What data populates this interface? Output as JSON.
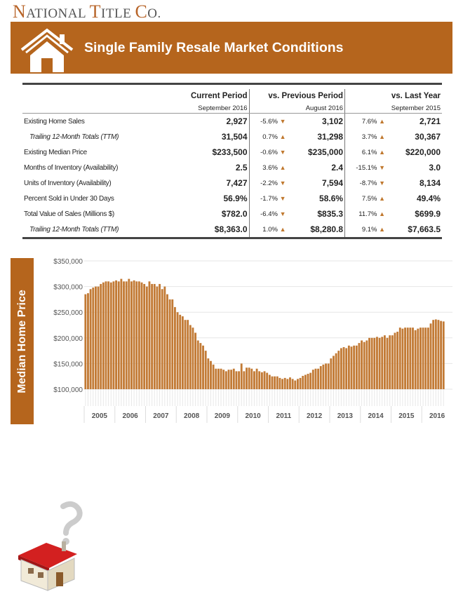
{
  "header": {
    "logo": {
      "n": "N",
      "ational": "ATIONAL",
      "t": "T",
      "itle": "ITLE",
      "c": "C",
      "o": "O."
    },
    "title": "Single Family Resale Market Conditions"
  },
  "table": {
    "col_headers": [
      "Current Period",
      "vs. Previous Period",
      "vs. Last Year"
    ],
    "col_periods": [
      "September 2016",
      "August 2016",
      "September 2015"
    ],
    "rows": [
      {
        "label": "Existing Home Sales",
        "italic": false,
        "current": "2,927",
        "prev_pct": "-5.6%",
        "prev_dir": "down",
        "prev": "3,102",
        "ly_pct": "7.6%",
        "ly_dir": "up",
        "ly": "2,721"
      },
      {
        "label": "Trailing 12-Month Totals (TTM)",
        "italic": true,
        "current": "31,504",
        "prev_pct": "0.7%",
        "prev_dir": "up",
        "prev": "31,298",
        "ly_pct": "3.7%",
        "ly_dir": "up",
        "ly": "30,367"
      },
      {
        "label": "Existing Median Price",
        "italic": false,
        "current": "$233,500",
        "prev_pct": "-0.6%",
        "prev_dir": "down",
        "prev": "$235,000",
        "ly_pct": "6.1%",
        "ly_dir": "up",
        "ly": "$220,000"
      },
      {
        "label": "Months of Inventory (Availability)",
        "italic": false,
        "current": "2.5",
        "prev_pct": "3.6%",
        "prev_dir": "up",
        "prev": "2.4",
        "ly_pct": "-15.1%",
        "ly_dir": "down",
        "ly": "3.0"
      },
      {
        "label": "Units of Inventory (Availability)",
        "italic": false,
        "current": "7,427",
        "prev_pct": "-2.2%",
        "prev_dir": "down",
        "prev": "7,594",
        "ly_pct": "-8.7%",
        "ly_dir": "down",
        "ly": "8,134"
      },
      {
        "label": "Percent Sold in Under 30 Days",
        "italic": false,
        "current": "56.9%",
        "prev_pct": "-1.7%",
        "prev_dir": "down",
        "prev": "58.6%",
        "ly_pct": "7.5%",
        "ly_dir": "up",
        "ly": "49.4%"
      },
      {
        "label": "Total Value of Sales (Millions $)",
        "italic": false,
        "current": "$782.0",
        "prev_pct": "-6.4%",
        "prev_dir": "down",
        "prev": "$835.3",
        "ly_pct": "11.7%",
        "ly_dir": "up",
        "ly": "$699.9"
      },
      {
        "label": "Trailing 12-Month Totals (TTM)",
        "italic": true,
        "current": "$8,363.0",
        "prev_pct": "1.0%",
        "prev_dir": "up",
        "prev": "$8,280.8",
        "ly_pct": "9.1%",
        "ly_dir": "up",
        "ly": "$7,663.5"
      }
    ]
  },
  "colors": {
    "brand": "#b5651d",
    "bar": "#c27a35",
    "arrow": "#c0782e"
  },
  "chart_data": {
    "type": "bar",
    "title": "",
    "ylabel": "Median Home Price",
    "ylim": [
      100000,
      350000
    ],
    "yticks": [
      100000,
      150000,
      200000,
      250000,
      300000,
      350000
    ],
    "ytick_labels": [
      "$100,000",
      "$150,000",
      "$200,000",
      "$250,000",
      "$300,000",
      "$350,000"
    ],
    "years": [
      "2005",
      "2006",
      "2007",
      "2008",
      "2009",
      "2010",
      "2011",
      "2012",
      "2013",
      "2014",
      "2015",
      "2016"
    ],
    "frequency": "monthly, Jan 2005 - Sep 2016",
    "values": [
      285000,
      287000,
      295000,
      298000,
      300000,
      300000,
      305000,
      308000,
      310000,
      310000,
      308000,
      310000,
      312000,
      310000,
      315000,
      310000,
      310000,
      315000,
      310000,
      312000,
      310000,
      310000,
      308000,
      305000,
      300000,
      310000,
      305000,
      305000,
      300000,
      305000,
      295000,
      300000,
      285000,
      275000,
      275000,
      260000,
      250000,
      245000,
      242000,
      235000,
      235000,
      225000,
      220000,
      210000,
      195000,
      190000,
      185000,
      175000,
      160000,
      155000,
      148000,
      140000,
      140000,
      140000,
      138000,
      135000,
      138000,
      138000,
      140000,
      135000,
      135000,
      150000,
      135000,
      142000,
      142000,
      140000,
      135000,
      140000,
      135000,
      133000,
      135000,
      132000,
      128000,
      125000,
      125000,
      125000,
      122000,
      120000,
      122000,
      120000,
      123000,
      120000,
      117000,
      120000,
      122000,
      126000,
      128000,
      130000,
      132000,
      138000,
      140000,
      140000,
      145000,
      148000,
      150000,
      150000,
      160000,
      165000,
      170000,
      175000,
      180000,
      182000,
      180000,
      185000,
      183000,
      185000,
      185000,
      190000,
      195000,
      192000,
      195000,
      200000,
      200000,
      200000,
      202000,
      200000,
      202000,
      205000,
      200000,
      205000,
      205000,
      210000,
      212000,
      220000,
      218000,
      220000,
      220000,
      220000,
      220000,
      215000,
      218000,
      220000,
      220000,
      220000,
      220000,
      228000,
      235000,
      236000,
      235000,
      233000,
      232000
    ],
    "grid": true,
    "legend": "none"
  }
}
